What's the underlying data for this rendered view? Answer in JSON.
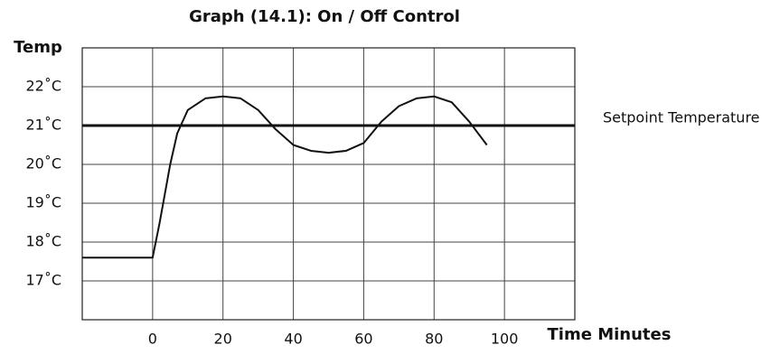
{
  "chart_data": {
    "type": "line",
    "title": "Graph (14.1):  On / Off Control",
    "y_label": "Temp",
    "x_label": "Time Minutes",
    "setpoint": 21,
    "setpoint_label": "Setpoint Temperature",
    "x": [
      -20,
      0,
      2,
      5,
      7,
      10,
      15,
      20,
      25,
      30,
      35,
      40,
      45,
      50,
      55,
      60,
      65,
      70,
      75,
      80,
      85,
      90,
      95
    ],
    "values": [
      17.6,
      17.6,
      18.5,
      20,
      20.8,
      21.4,
      21.7,
      21.75,
      21.7,
      21.4,
      20.9,
      20.5,
      20.35,
      20.3,
      20.35,
      20.55,
      21.1,
      21.5,
      21.7,
      21.75,
      21.6,
      21.1,
      20.5
    ],
    "color": "#111111",
    "xlim": [
      -20,
      120
    ],
    "xticks": [
      0,
      20,
      40,
      60,
      80,
      100
    ],
    "ylim": [
      16,
      23
    ],
    "yticks": [
      {
        "value": 17,
        "label": "17˚C"
      },
      {
        "value": 18,
        "label": "18˚C"
      },
      {
        "value": 19,
        "label": "19˚C"
      },
      {
        "value": 20,
        "label": "20˚C"
      },
      {
        "value": 21,
        "label": "21˚C"
      },
      {
        "value": 22,
        "label": "22˚C"
      }
    ],
    "grid": true
  }
}
